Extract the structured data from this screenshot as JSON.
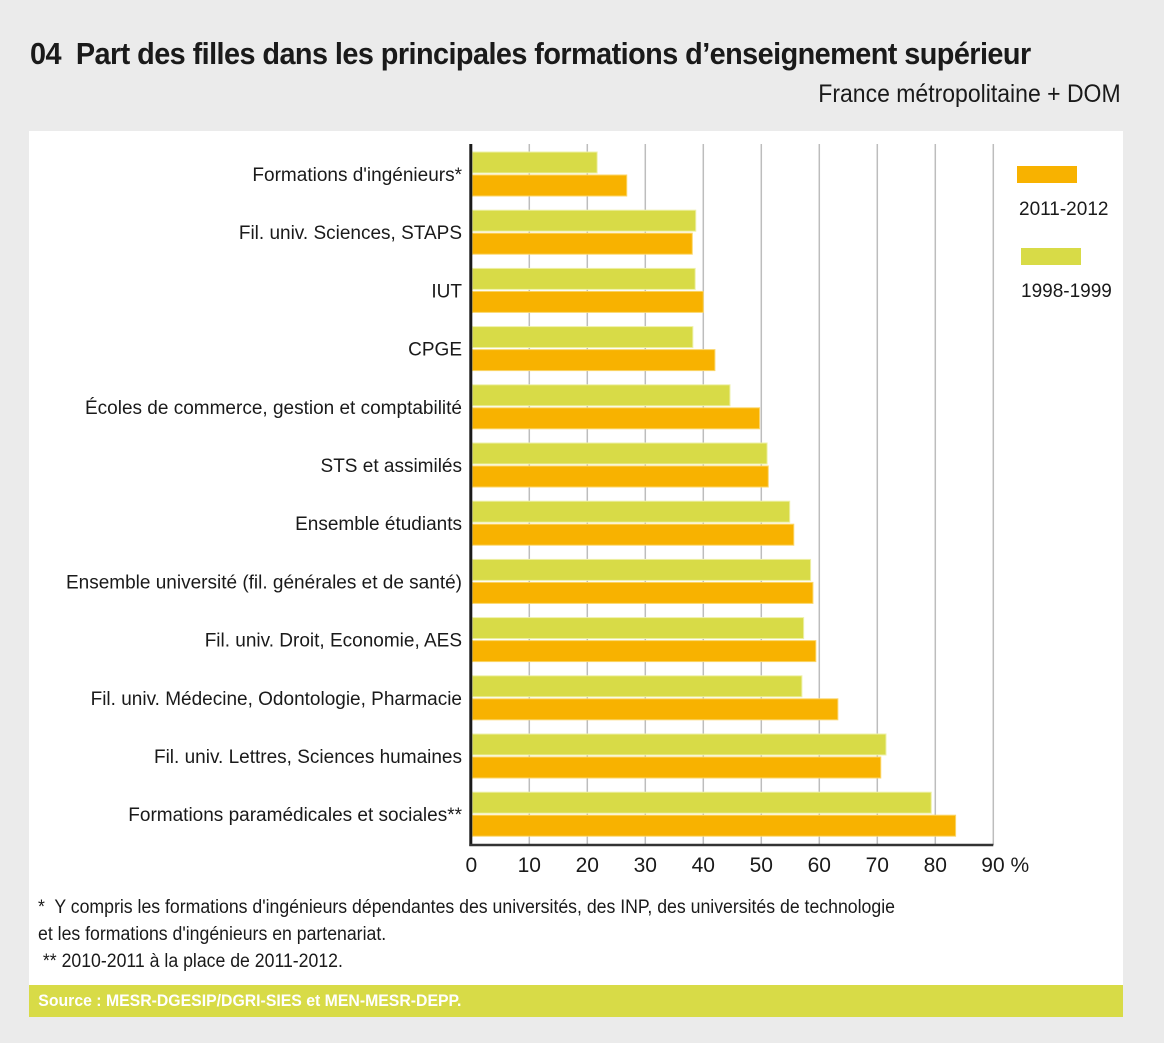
{
  "header": {
    "number": "04",
    "title": "Part des filles dans les principales formations d’enseignement supérieur",
    "subtitle": "France métropolitaine + DOM"
  },
  "colors": {
    "series_2011": "#f8b200",
    "series_1998": "#d8db47",
    "grid": "#bdbdbd",
    "axis": "#1a1a1a",
    "source_band": "#d8db47",
    "background": "#ebebeb"
  },
  "chart_data": {
    "type": "bar",
    "orientation": "horizontal",
    "title": "Part des filles dans les principales formations d’enseignement supérieur",
    "subtitle": "France métropolitaine + DOM",
    "xlabel": "%",
    "ylabel": "",
    "xlim": [
      0,
      90
    ],
    "x_ticks": [
      "0",
      "10",
      "20",
      "30",
      "40",
      "50",
      "60",
      "70",
      "80",
      "90 %"
    ],
    "grid": "vertical",
    "legend_position": "top-right",
    "categories": [
      "Formations d'ingénieurs*",
      "Fil. univ. Sciences, STAPS",
      "IUT",
      "CPGE",
      "Écoles de commerce, gestion et comptabilité",
      "STS et assimilés",
      "Ensemble étudiants",
      "Ensemble université (fil. générales et de santé)",
      "Fil. univ. Droit, Economie, AES",
      "Fil. univ. Médecine, Odontologie, Pharmacie",
      "Fil. univ. Lettres, Sciences humaines",
      "Formations paramédicales et sociales**"
    ],
    "series": [
      {
        "name": "1998-1999",
        "values": [
          21.7,
          38.7,
          38.6,
          38.2,
          44.6,
          51.0,
          54.9,
          58.5,
          57.3,
          57.0,
          71.5,
          79.3
        ]
      },
      {
        "name": "2011-2012",
        "values": [
          26.8,
          38.1,
          40.0,
          42.0,
          49.7,
          51.2,
          55.6,
          58.9,
          59.4,
          63.2,
          70.6,
          83.5
        ]
      }
    ],
    "legend": [
      "2011-2012",
      "1998-1999"
    ]
  },
  "notes": [
    "*  Y compris les formations d'ingénieurs dépendantes des universités, des INP, des universités de technologie",
    "et les formations d'ingénieurs en partenariat.",
    " ** 2010-2011 à la place de 2011-2012."
  ],
  "source": "Source : MESR-DGESIP/DGRI-SIES et MEN-MESR-DEPP."
}
